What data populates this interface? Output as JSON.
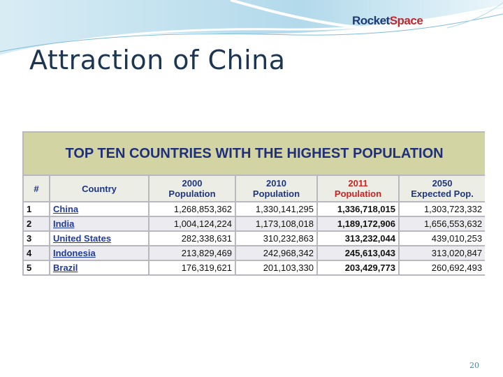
{
  "header": {
    "title": "Attraction of China",
    "logo": {
      "parts": [
        "Rocket",
        "Space"
      ]
    }
  },
  "table": {
    "title": "TOP TEN COUNTRIES WITH THE HIGHEST POPULATION",
    "columns": [
      {
        "lines": [
          "#"
        ]
      },
      {
        "lines": [
          "Country"
        ]
      },
      {
        "lines": [
          "2000",
          "Population"
        ]
      },
      {
        "lines": [
          "2010",
          "Population"
        ]
      },
      {
        "lines": [
          "2011",
          "Population"
        ]
      },
      {
        "lines": [
          "2050",
          "Expected Pop."
        ]
      }
    ],
    "rows": [
      [
        "1",
        "China",
        "1,268,853,362",
        "1,330,141,295",
        "1,336,718,015",
        "1,303,723,332"
      ],
      [
        "2",
        "India",
        "1,004,124,224",
        "1,173,108,018",
        "1,189,172,906",
        "1,656,553,632"
      ],
      [
        "3",
        "United States",
        "282,338,631",
        "310,232,863",
        "313,232,044",
        "439,010,253"
      ],
      [
        "4",
        "Indonesia",
        "213,829,469",
        "242,968,342",
        "245,613,043",
        "313,020,847"
      ],
      [
        "5",
        "Brazil",
        "176,319,621",
        "201,103,330",
        "203,429,773",
        "260,692,493"
      ]
    ]
  },
  "footer": {
    "page_number": "20"
  }
}
